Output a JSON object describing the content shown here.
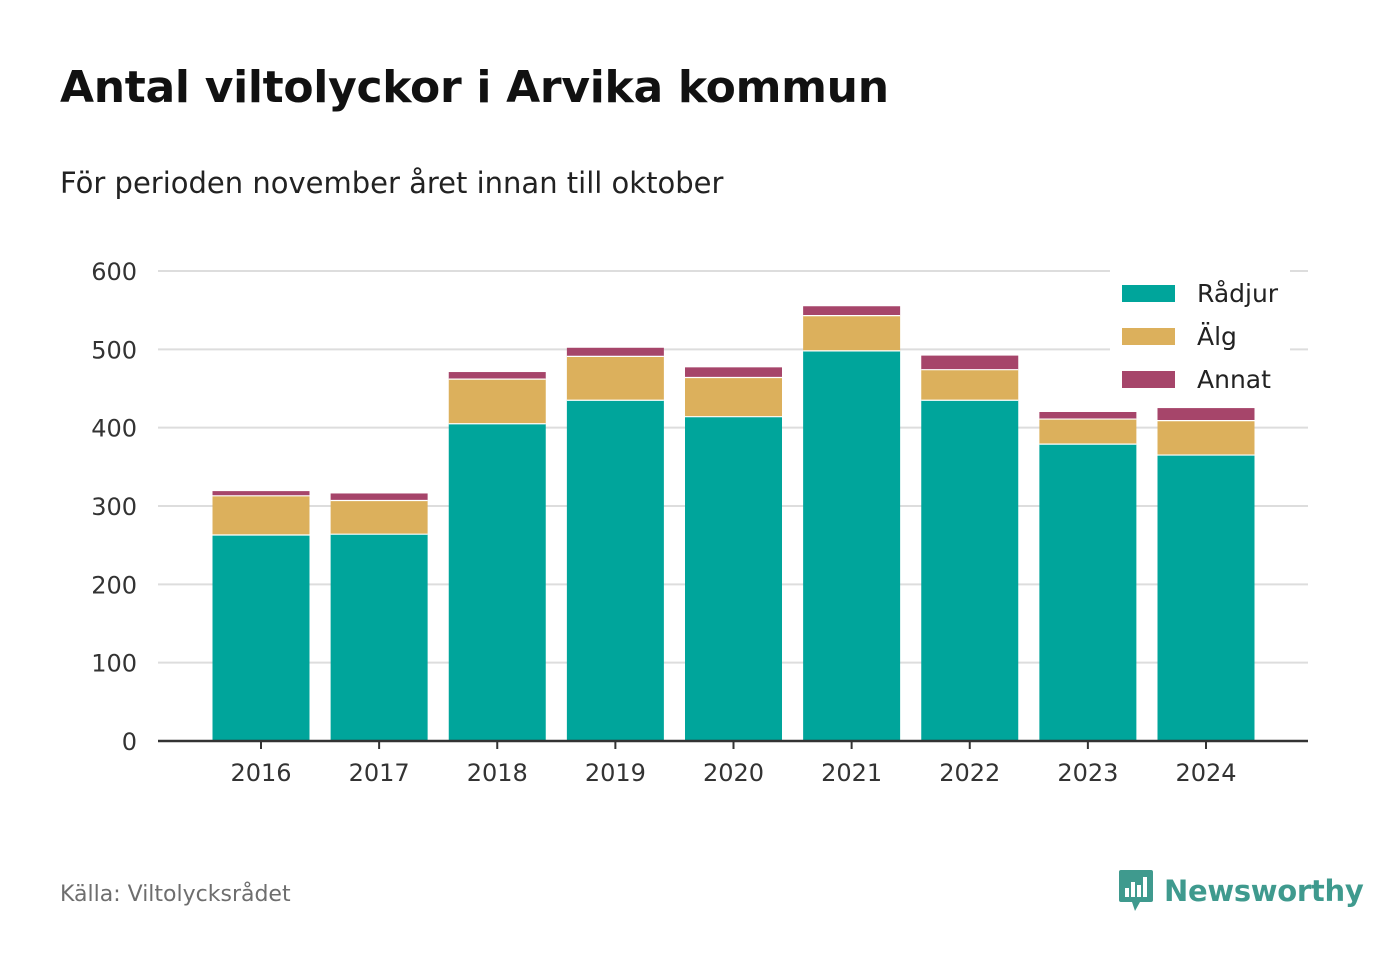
{
  "title": "Antal viltolyckor i Arvika kommun",
  "subtitle": "För perioden november året innan till oktober",
  "source": "Källa: Viltolycksrådet",
  "brand": {
    "name": "Newsworthy",
    "icon": "newsworthy-logo-icon"
  },
  "chart_data": {
    "type": "bar",
    "stacked": true,
    "categories": [
      "2016",
      "2017",
      "2018",
      "2019",
      "2020",
      "2021",
      "2022",
      "2023",
      "2024"
    ],
    "series": [
      {
        "name": "Rådjur",
        "color": "#00a59b",
        "values": [
          263,
          264,
          405,
          435,
          414,
          498,
          435,
          379,
          365
        ]
      },
      {
        "name": "Älg",
        "color": "#dcb05c",
        "values": [
          50,
          43,
          57,
          56,
          50,
          45,
          39,
          32,
          44
        ]
      },
      {
        "name": "Annat",
        "color": "#a6456a",
        "values": [
          6,
          9,
          9,
          11,
          13,
          12,
          18,
          9,
          16
        ]
      }
    ],
    "ylim": [
      0,
      600
    ],
    "yticks": [
      0,
      100,
      200,
      300,
      400,
      500,
      600
    ],
    "xlabel": "",
    "ylabel": "",
    "grid": true,
    "legend": "top-right"
  }
}
